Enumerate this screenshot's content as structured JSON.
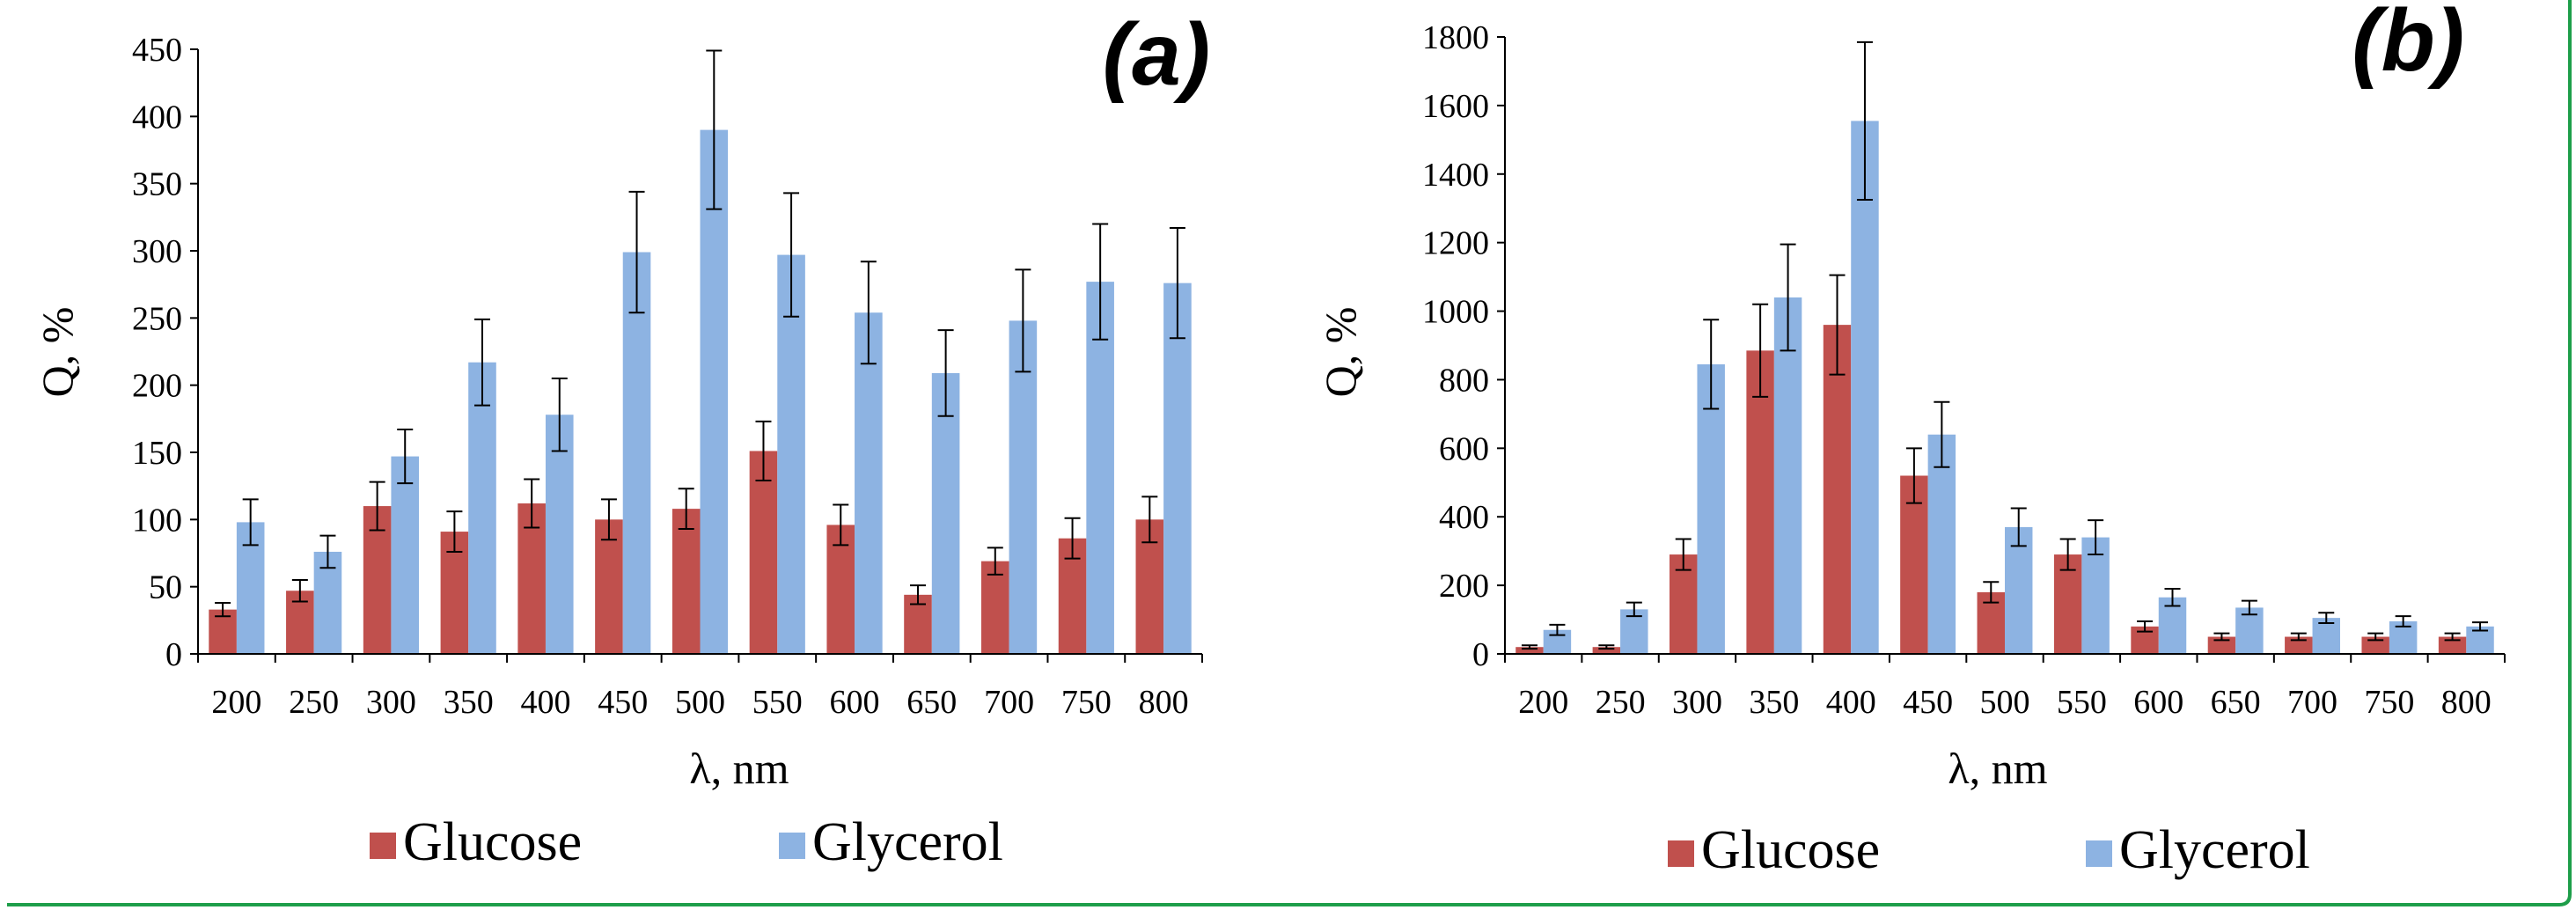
{
  "chart_data": [
    {
      "type": "bar",
      "panel_label": "(a)",
      "xlabel": "λ, nm",
      "ylabel": "Q, %",
      "ylim": [
        0,
        450
      ],
      "yticks": [
        "0",
        "50",
        "100",
        "150",
        "200",
        "250",
        "300",
        "350",
        "400",
        "450"
      ],
      "categories": [
        "200",
        "250",
        "300",
        "350",
        "400",
        "450",
        "500",
        "550",
        "600",
        "650",
        "700",
        "750",
        "800"
      ],
      "series": [
        {
          "name": "Glucose",
          "color": "#c0504d",
          "values": [
            33,
            47,
            110,
            91,
            112,
            100,
            108,
            151,
            96,
            44,
            69,
            86,
            100
          ],
          "errors": [
            5,
            8,
            18,
            15,
            18,
            15,
            15,
            22,
            15,
            7,
            10,
            15,
            17
          ]
        },
        {
          "name": "Glycerol",
          "color": "#8db3e2",
          "values": [
            98,
            76,
            147,
            217,
            178,
            299,
            390,
            297,
            254,
            209,
            248,
            277,
            276
          ],
          "errors": [
            17,
            12,
            20,
            32,
            27,
            45,
            59,
            46,
            38,
            32,
            38,
            43,
            41
          ]
        }
      ],
      "grid": false,
      "legend": "bottom"
    },
    {
      "type": "bar",
      "panel_label": "(b)",
      "xlabel": "λ, nm",
      "ylabel": "Q, %",
      "ylim": [
        0,
        1800
      ],
      "yticks": [
        "0",
        "200",
        "400",
        "600",
        "800",
        "1000",
        "1200",
        "1400",
        "1600",
        "1800"
      ],
      "categories": [
        "200",
        "250",
        "300",
        "350",
        "400",
        "450",
        "500",
        "550",
        "600",
        "650",
        "700",
        "750",
        "800"
      ],
      "series": [
        {
          "name": "Glucose",
          "color": "#c0504d",
          "values": [
            20,
            20,
            290,
            885,
            960,
            520,
            180,
            290,
            80,
            50,
            50,
            50,
            50
          ],
          "errors": [
            5,
            5,
            45,
            135,
            145,
            80,
            30,
            45,
            15,
            10,
            10,
            10,
            10
          ]
        },
        {
          "name": "Glycerol",
          "color": "#8db3e2",
          "values": [
            70,
            130,
            845,
            1040,
            1555,
            640,
            370,
            340,
            165,
            135,
            105,
            95,
            80
          ],
          "errors": [
            15,
            20,
            130,
            155,
            230,
            95,
            55,
            50,
            25,
            20,
            15,
            15,
            12
          ]
        }
      ],
      "grid": false,
      "legend": "bottom"
    }
  ]
}
